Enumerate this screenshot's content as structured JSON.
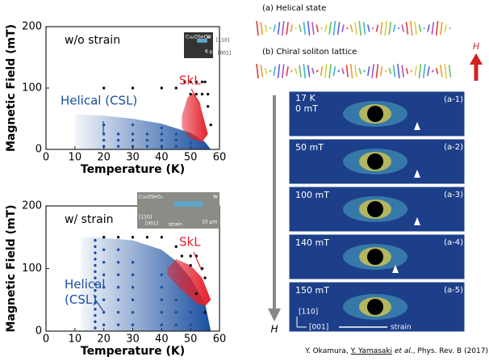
{
  "chart_data": [
    {
      "type": "scatter",
      "annotation": "w/o strain",
      "xlabel": "Temperature (K)",
      "ylabel": "Magnetic Field (mT)",
      "xlim": [
        0,
        60
      ],
      "ylim": [
        0,
        200
      ],
      "xticks": [
        0,
        10,
        20,
        30,
        40,
        50,
        60
      ],
      "yticks": [
        0,
        100,
        200
      ],
      "regions": [
        {
          "name": "Helical (CSL)",
          "color": "#1a4fa0",
          "x": [
            10,
            20,
            30,
            40,
            50,
            55,
            57,
            10
          ],
          "y": [
            57,
            55,
            50,
            42,
            27,
            12,
            0,
            0
          ]
        },
        {
          "name": "SkL",
          "color": "#e3202a",
          "x": [
            47,
            49,
            51,
            53,
            56,
            54,
            50,
            47
          ],
          "y": [
            55,
            85,
            92,
            78,
            25,
            12,
            18,
            35
          ]
        }
      ],
      "markers": [
        {
          "color": "#111111",
          "x": [
            20,
            30,
            40,
            45,
            48,
            50,
            52,
            54,
            55,
            50,
            52,
            54,
            56,
            56,
            57
          ],
          "y": [
            100,
            100,
            100,
            100,
            110,
            110,
            110,
            110,
            110,
            90,
            90,
            90,
            90,
            70,
            40
          ]
        },
        {
          "color": "#1a4fa0",
          "x": [
            20,
            25,
            30,
            35,
            40,
            45,
            20,
            25,
            30,
            35,
            40,
            45,
            20,
            25,
            30,
            35,
            40,
            45,
            50,
            20,
            30,
            40
          ],
          "y": [
            5,
            5,
            5,
            5,
            5,
            5,
            15,
            15,
            15,
            15,
            15,
            15,
            25,
            25,
            25,
            25,
            25,
            25,
            10,
            40,
            40,
            35
          ]
        }
      ],
      "inset": {
        "sample": "Cu₂OSeO₃",
        "electrode": "W",
        "dir1": "[110]",
        "dir2": "[001]",
        "scale": "6 μm"
      }
    },
    {
      "type": "scatter",
      "annotation": "w/ strain",
      "xlabel": "Temperature (K)",
      "ylabel": "Magnetic Field (mT)",
      "xlim": [
        0,
        60
      ],
      "ylim": [
        0,
        200
      ],
      "xticks": [
        0,
        10,
        20,
        30,
        40,
        50,
        60
      ],
      "yticks": [
        0,
        100,
        200
      ],
      "regions": [
        {
          "name": "Helical (CSL)",
          "color": "#1a4fa0",
          "x": [
            12,
            17,
            30,
            40,
            45,
            50,
            55,
            57,
            12
          ],
          "y": [
            150,
            150,
            145,
            130,
            112,
            85,
            45,
            0,
            0
          ]
        },
        {
          "name": "SkL",
          "color": "#e3202a",
          "x": [
            42,
            45,
            50,
            54,
            57,
            55,
            52,
            46,
            42
          ],
          "y": [
            100,
            115,
            105,
            85,
            50,
            40,
            45,
            70,
            90
          ]
        }
      ],
      "markers": [
        {
          "color": "#111111",
          "x": [
            20,
            25,
            30,
            35,
            40,
            45,
            47,
            50,
            52,
            54,
            55,
            50,
            52,
            55
          ],
          "y": [
            150,
            150,
            150,
            150,
            150,
            135,
            120,
            120,
            120,
            100,
            85,
            105,
            60,
            30
          ]
        },
        {
          "color": "#1a4fa0",
          "x": [
            17,
            17,
            17,
            17,
            17,
            17,
            17,
            17,
            17,
            17,
            17,
            17,
            17,
            17,
            17,
            20,
            20,
            20,
            20,
            20,
            20,
            20,
            25,
            25,
            25,
            25,
            25,
            25,
            25,
            30,
            30,
            30,
            30,
            30,
            30,
            40,
            40,
            40,
            40,
            40,
            45,
            45,
            45,
            50,
            50
          ],
          "y": [
            5,
            15,
            25,
            35,
            45,
            55,
            65,
            75,
            85,
            95,
            105,
            115,
            125,
            135,
            145,
            10,
            30,
            50,
            70,
            90,
            110,
            130,
            10,
            30,
            50,
            70,
            90,
            110,
            130,
            10,
            30,
            50,
            70,
            90,
            110,
            10,
            30,
            50,
            70,
            90,
            10,
            30,
            50,
            10,
            30
          ]
        }
      ],
      "inset": {
        "sample": "Cu₂OSeO₃",
        "electrode": "W",
        "dir1": "[110]",
        "dir2": "[001]",
        "scale": "10 μm",
        "strain": "strain"
      }
    }
  ],
  "right": {
    "helical": "(a) Helical state",
    "csl": "(b) Chiral soliton lattice",
    "field": "H",
    "panels": [
      {
        "label": "(a-1)",
        "temp": "17 K",
        "field": "0 mT"
      },
      {
        "label": "(a-2)",
        "field": "50 mT"
      },
      {
        "label": "(a-3)",
        "field": "100 mT"
      },
      {
        "label": "(a-4)",
        "field": "140 mT"
      },
      {
        "label": "(a-5)",
        "field": "150 mT"
      }
    ],
    "axis_h": "H",
    "dir1": "[110]",
    "dir2": "[001]",
    "strain": "strain"
  },
  "citation": {
    "a": "Y. Okamura, ",
    "b": "Y. Yamasaki",
    "c": " et al.",
    "d": ", Phys. Rev. B (2017)"
  }
}
